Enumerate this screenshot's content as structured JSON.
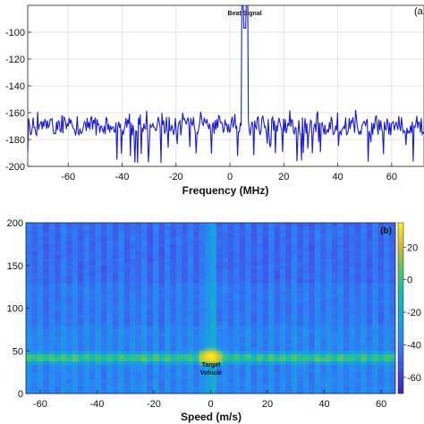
{
  "chart_data": [
    {
      "type": "line",
      "panel": "(a",
      "xlabel": "Frequency (MHz)",
      "ylabel": "",
      "xlim": [
        -75,
        72
      ],
      "ylim": [
        -200,
        -80
      ],
      "xticks": [
        -60,
        -40,
        -20,
        0,
        20,
        40,
        60
      ],
      "yticks": [
        -100,
        -120,
        -140,
        -160,
        -180,
        -200
      ],
      "grid": true,
      "line_color": "#1a1ad0",
      "noise_floor": -170,
      "noise_min": -200,
      "peak": {
        "x": 5.5,
        "y": -97
      },
      "annotation": {
        "text": "Beat Signal",
        "x": 5.5,
        "y": -92
      }
    },
    {
      "type": "heatmap",
      "panel": "(b)",
      "xlabel": "Speed (m/s)",
      "ylabel": "",
      "xlim": [
        -65,
        65
      ],
      "ylim": [
        0,
        200
      ],
      "xticks": [
        -60,
        -40,
        -20,
        0,
        20,
        40,
        60
      ],
      "yticks": [
        0,
        50,
        100,
        150,
        200
      ],
      "target": {
        "speed": 0,
        "range": 42
      },
      "annotation": {
        "line1": "Target",
        "line2": "Vehicle"
      },
      "colorbar": {
        "ticks": [
          20,
          0,
          -20,
          -40,
          -60
        ],
        "range": [
          -70,
          35
        ]
      }
    }
  ]
}
